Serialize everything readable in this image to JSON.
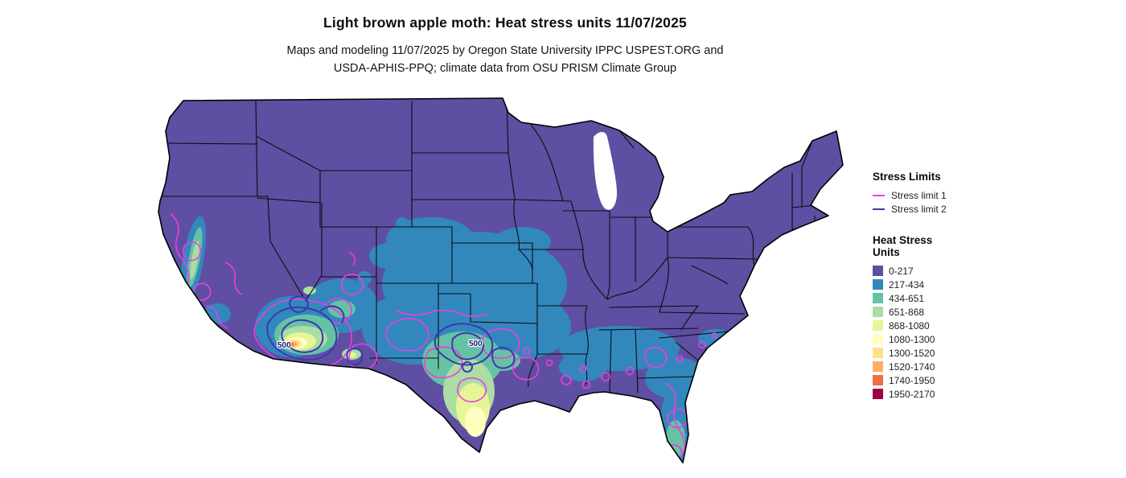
{
  "title": "Light brown apple moth: Heat stress units 11/07/2025",
  "subtitle": [
    "Maps and modeling 11/07/2025 by Oregon State University IPPC USPEST.ORG and",
    "USDA-APHIS-PPQ; climate data from OSU PRISM Climate Group"
  ],
  "legends": {
    "stress_limits": {
      "title": "Stress Limits",
      "items": [
        {
          "label": "Stress limit 1",
          "color": "#f23ae2"
        },
        {
          "label": "Stress limit 2",
          "color": "#3a3aae"
        }
      ]
    },
    "heat_stress_units": {
      "title_lines": [
        "Heat Stress",
        "Units"
      ],
      "bins": [
        {
          "label": "0-217",
          "color": "#5e4fa2"
        },
        {
          "label": "217-434",
          "color": "#3288bd"
        },
        {
          "label": "434-651",
          "color": "#66c2a5"
        },
        {
          "label": "651-868",
          "color": "#abdda4"
        },
        {
          "label": "868-1080",
          "color": "#e6f598"
        },
        {
          "label": "1080-1300",
          "color": "#ffffbf"
        },
        {
          "label": "1300-1520",
          "color": "#fee08b"
        },
        {
          "label": "1520-1740",
          "color": "#fdae61"
        },
        {
          "label": "1740-1950",
          "color": "#f46d43"
        },
        {
          "label": "1950-2170",
          "color": "#9e0142"
        }
      ]
    }
  },
  "map": {
    "outline_color": "#000000",
    "contour_labels": [
      {
        "text": "500"
      },
      {
        "text": "500"
      }
    ]
  }
}
